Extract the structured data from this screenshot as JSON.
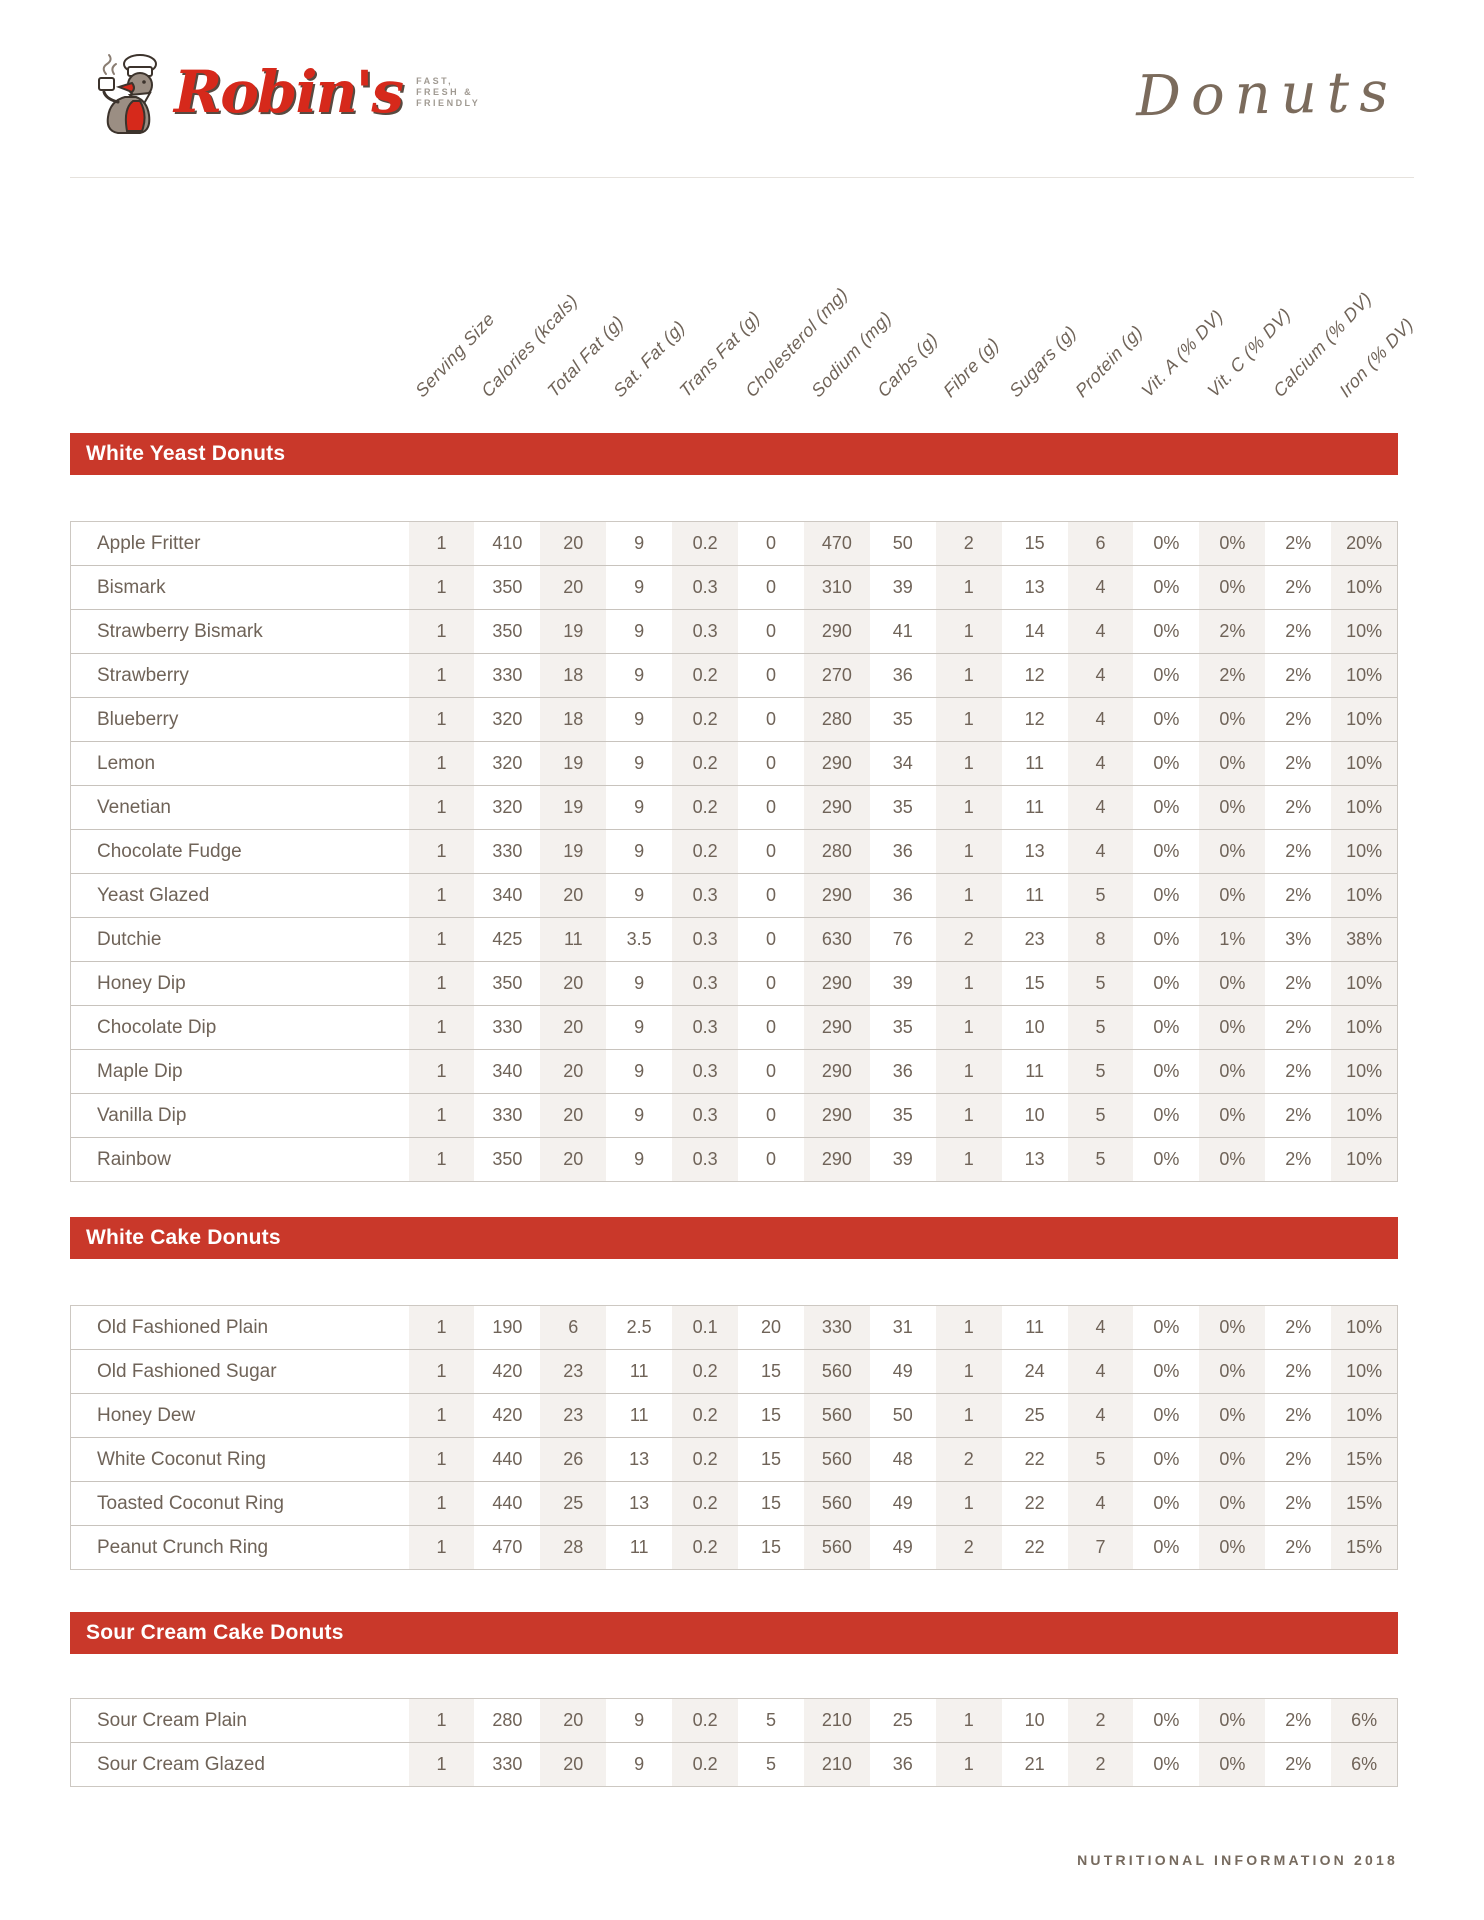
{
  "brand": {
    "logo_text": "Robin's",
    "tagline_lines": [
      "FAST,",
      "FRESH &",
      "FRIENDLY"
    ]
  },
  "page_title": "Donuts",
  "columns": [
    "Serving Size",
    "Calories (kcals)",
    "Total Fat (g)",
    "Sat. Fat (g)",
    "Trans Fat (g)",
    "Cholesterol (mg)",
    "Sodium (mg)",
    "Carbs (g)",
    "Fibre (g)",
    "Sugars (g)",
    "Protein (g)",
    "Vit. A (% DV)",
    "Vit. C (% DV)",
    "Calcium (% DV)",
    "Iron (% DV)"
  ],
  "sections": [
    {
      "title": "White Yeast Donuts",
      "rows": [
        {
          "name": "Apple Fritter",
          "values": [
            "1",
            "410",
            "20",
            "9",
            "0.2",
            "0",
            "470",
            "50",
            "2",
            "15",
            "6",
            "0%",
            "0%",
            "2%",
            "20%"
          ]
        },
        {
          "name": "Bismark",
          "values": [
            "1",
            "350",
            "20",
            "9",
            "0.3",
            "0",
            "310",
            "39",
            "1",
            "13",
            "4",
            "0%",
            "0%",
            "2%",
            "10%"
          ]
        },
        {
          "name": "Strawberry Bismark",
          "values": [
            "1",
            "350",
            "19",
            "9",
            "0.3",
            "0",
            "290",
            "41",
            "1",
            "14",
            "4",
            "0%",
            "2%",
            "2%",
            "10%"
          ]
        },
        {
          "name": "Strawberry",
          "values": [
            "1",
            "330",
            "18",
            "9",
            "0.2",
            "0",
            "270",
            "36",
            "1",
            "12",
            "4",
            "0%",
            "2%",
            "2%",
            "10%"
          ]
        },
        {
          "name": "Blueberry",
          "values": [
            "1",
            "320",
            "18",
            "9",
            "0.2",
            "0",
            "280",
            "35",
            "1",
            "12",
            "4",
            "0%",
            "0%",
            "2%",
            "10%"
          ]
        },
        {
          "name": "Lemon",
          "values": [
            "1",
            "320",
            "19",
            "9",
            "0.2",
            "0",
            "290",
            "34",
            "1",
            "11",
            "4",
            "0%",
            "0%",
            "2%",
            "10%"
          ]
        },
        {
          "name": "Venetian",
          "values": [
            "1",
            "320",
            "19",
            "9",
            "0.2",
            "0",
            "290",
            "35",
            "1",
            "11",
            "4",
            "0%",
            "0%",
            "2%",
            "10%"
          ]
        },
        {
          "name": "Chocolate Fudge",
          "values": [
            "1",
            "330",
            "19",
            "9",
            "0.2",
            "0",
            "280",
            "36",
            "1",
            "13",
            "4",
            "0%",
            "0%",
            "2%",
            "10%"
          ]
        },
        {
          "name": "Yeast Glazed",
          "values": [
            "1",
            "340",
            "20",
            "9",
            "0.3",
            "0",
            "290",
            "36",
            "1",
            "11",
            "5",
            "0%",
            "0%",
            "2%",
            "10%"
          ]
        },
        {
          "name": "Dutchie",
          "values": [
            "1",
            "425",
            "11",
            "3.5",
            "0.3",
            "0",
            "630",
            "76",
            "2",
            "23",
            "8",
            "0%",
            "1%",
            "3%",
            "38%"
          ]
        },
        {
          "name": "Honey Dip",
          "values": [
            "1",
            "350",
            "20",
            "9",
            "0.3",
            "0",
            "290",
            "39",
            "1",
            "15",
            "5",
            "0%",
            "0%",
            "2%",
            "10%"
          ]
        },
        {
          "name": "Chocolate Dip",
          "values": [
            "1",
            "330",
            "20",
            "9",
            "0.3",
            "0",
            "290",
            "35",
            "1",
            "10",
            "5",
            "0%",
            "0%",
            "2%",
            "10%"
          ]
        },
        {
          "name": "Maple Dip",
          "values": [
            "1",
            "340",
            "20",
            "9",
            "0.3",
            "0",
            "290",
            "36",
            "1",
            "11",
            "5",
            "0%",
            "0%",
            "2%",
            "10%"
          ]
        },
        {
          "name": "Vanilla Dip",
          "values": [
            "1",
            "330",
            "20",
            "9",
            "0.3",
            "0",
            "290",
            "35",
            "1",
            "10",
            "5",
            "0%",
            "0%",
            "2%",
            "10%"
          ]
        },
        {
          "name": "Rainbow",
          "values": [
            "1",
            "350",
            "20",
            "9",
            "0.3",
            "0",
            "290",
            "39",
            "1",
            "13",
            "5",
            "0%",
            "0%",
            "2%",
            "10%"
          ]
        }
      ]
    },
    {
      "title": "White Cake Donuts",
      "rows": [
        {
          "name": "Old Fashioned Plain",
          "values": [
            "1",
            "190",
            "6",
            "2.5",
            "0.1",
            "20",
            "330",
            "31",
            "1",
            "11",
            "4",
            "0%",
            "0%",
            "2%",
            "10%"
          ]
        },
        {
          "name": "Old Fashioned Sugar",
          "values": [
            "1",
            "420",
            "23",
            "11",
            "0.2",
            "15",
            "560",
            "49",
            "1",
            "24",
            "4",
            "0%",
            "0%",
            "2%",
            "10%"
          ]
        },
        {
          "name": "Honey Dew",
          "values": [
            "1",
            "420",
            "23",
            "11",
            "0.2",
            "15",
            "560",
            "50",
            "1",
            "25",
            "4",
            "0%",
            "0%",
            "2%",
            "10%"
          ]
        },
        {
          "name": "White Coconut Ring",
          "values": [
            "1",
            "440",
            "26",
            "13",
            "0.2",
            "15",
            "560",
            "48",
            "2",
            "22",
            "5",
            "0%",
            "0%",
            "2%",
            "15%"
          ]
        },
        {
          "name": "Toasted Coconut Ring",
          "values": [
            "1",
            "440",
            "25",
            "13",
            "0.2",
            "15",
            "560",
            "49",
            "1",
            "22",
            "4",
            "0%",
            "0%",
            "2%",
            "15%"
          ]
        },
        {
          "name": "Peanut Crunch Ring",
          "values": [
            "1",
            "470",
            "28",
            "11",
            "0.2",
            "15",
            "560",
            "49",
            "2",
            "22",
            "7",
            "0%",
            "0%",
            "2%",
            "15%"
          ]
        }
      ]
    },
    {
      "title": "Sour Cream Cake Donuts",
      "rows": [
        {
          "name": "Sour Cream Plain",
          "values": [
            "1",
            "280",
            "20",
            "9",
            "0.2",
            "5",
            "210",
            "25",
            "1",
            "10",
            "2",
            "0%",
            "0%",
            "2%",
            "6%"
          ]
        },
        {
          "name": "Sour Cream Glazed",
          "values": [
            "1",
            "330",
            "20",
            "9",
            "0.2",
            "5",
            "210",
            "36",
            "1",
            "21",
            "2",
            "0%",
            "0%",
            "2%",
            "6%"
          ]
        }
      ]
    }
  ],
  "footer": "NUTRITIONAL INFORMATION 2018",
  "colors": {
    "accent_red": "#c9382a",
    "logo_red": "#d6291b",
    "text_brown": "#6f6358",
    "stripe": "#f4f1ee"
  }
}
